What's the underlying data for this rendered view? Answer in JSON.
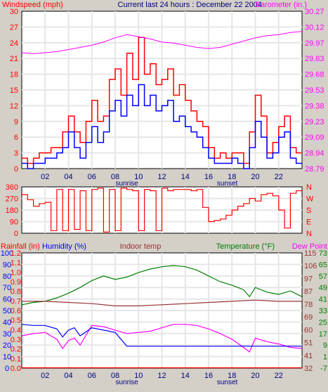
{
  "colors": {
    "background": "#d4d0c8",
    "plot_bg": "#ffffff",
    "grid": "#e6e6e6",
    "wind": "#ff0000",
    "gust": "#0000ff",
    "pressure": "#ff00ff",
    "direction": "#ff0000",
    "rain": "#ff0000",
    "humidity": "#0000ff",
    "indoor": "#993333",
    "temperature": "#008000",
    "dewpoint": "#ff00ff"
  },
  "chart_data": [
    {
      "type": "line",
      "title": "Current last 24 hours : December 22 2004",
      "left_axis_label": "Windspeed (mph)",
      "right_axis_label": "Barometer (in.)",
      "x_ticks": [
        "02",
        "04",
        "06",
        "08",
        "10",
        "12",
        "14",
        "16",
        "18",
        "20",
        "22"
      ],
      "markers": [
        "sunrise",
        "sunset"
      ],
      "marker_hours": [
        9,
        17.6
      ],
      "ylim": [
        0,
        30
      ],
      "y_ticks": [
        "0",
        "3",
        "6",
        "9",
        "12",
        "15",
        "18",
        "21",
        "24",
        "27",
        "30"
      ],
      "y2lim": [
        28.79,
        30.27
      ],
      "y2_ticks": [
        "28.79",
        "28.94",
        "29.09",
        "29.23",
        "29.38",
        "29.53",
        "29.68",
        "29.83",
        "29.97",
        "30.12",
        "30.27"
      ],
      "series": [
        {
          "key": "wind",
          "axis": "left",
          "x": [
            0,
            0.5,
            1,
            1.5,
            2,
            2.5,
            3,
            3.5,
            4,
            4.5,
            5,
            5.5,
            6,
            6.5,
            7,
            7.5,
            8,
            8.5,
            9,
            9.5,
            10,
            10.5,
            11,
            11.5,
            12,
            12.5,
            13,
            13.5,
            14,
            14.5,
            15,
            15.5,
            16,
            16.5,
            17,
            17.5,
            18,
            18.5,
            19,
            19.5,
            20,
            20.5,
            21,
            21.5,
            22,
            22.5,
            23,
            23.5
          ],
          "values": [
            2,
            1,
            2,
            3,
            3,
            4,
            4,
            7,
            10,
            7,
            5,
            9,
            13,
            9,
            10,
            17,
            19,
            14,
            22,
            17,
            25,
            18,
            20,
            16,
            17,
            19,
            14,
            16,
            13,
            11,
            9,
            8,
            4,
            2,
            3,
            2,
            3,
            3,
            1,
            7,
            14,
            10,
            3,
            5,
            8,
            10,
            4,
            3
          ]
        },
        {
          "key": "gust",
          "axis": "left",
          "x": [
            0,
            0.5,
            1,
            1.5,
            2,
            2.5,
            3,
            3.5,
            4,
            4.5,
            5,
            5.5,
            6,
            6.5,
            7,
            7.5,
            8,
            8.5,
            9,
            9.5,
            10,
            10.5,
            11,
            11.5,
            12,
            12.5,
            13,
            13.5,
            14,
            14.5,
            15,
            15.5,
            16,
            16.5,
            17,
            17.5,
            18,
            18.5,
            19,
            19.5,
            20,
            20.5,
            21,
            21.5,
            22,
            22.5,
            23,
            23.5
          ],
          "values": [
            1,
            0,
            1,
            1,
            2,
            2,
            3,
            4,
            7,
            4,
            2,
            5,
            8,
            5,
            7,
            11,
            13,
            10,
            14,
            12,
            16,
            12,
            14,
            11,
            12,
            13,
            9,
            10,
            8,
            7,
            6,
            4,
            2,
            1,
            1,
            1,
            2,
            1,
            0,
            4,
            9,
            6,
            2,
            3,
            6,
            7,
            2,
            1
          ]
        },
        {
          "key": "pressure",
          "axis": "right",
          "x": [
            0,
            1,
            2,
            3,
            4,
            5,
            6,
            7,
            8,
            9,
            10,
            11,
            12,
            13,
            14,
            15,
            16,
            17,
            18,
            19,
            20,
            21,
            22,
            23,
            24
          ],
          "values": [
            29.88,
            29.87,
            29.88,
            29.89,
            29.91,
            29.93,
            29.95,
            29.98,
            30.02,
            30.05,
            30.03,
            30.01,
            29.98,
            29.97,
            29.95,
            29.93,
            29.92,
            29.93,
            29.96,
            29.99,
            30.02,
            30.04,
            30.05,
            30.07,
            30.08
          ]
        }
      ]
    },
    {
      "type": "line",
      "title": "",
      "ylim": [
        0,
        360
      ],
      "y_ticks": [
        "0",
        "90",
        "180",
        "270",
        "360"
      ],
      "y2_ticks": [
        "N",
        "E",
        "S",
        "W",
        "N"
      ],
      "series": [
        {
          "key": "direction",
          "axis": "left",
          "x": [
            0,
            0.5,
            1,
            1.5,
            2,
            2.5,
            3,
            3.5,
            4,
            4.5,
            5,
            5.5,
            6,
            6.5,
            7,
            7.5,
            8,
            8.5,
            9,
            9.5,
            10,
            10.5,
            11,
            11.5,
            12,
            12.5,
            13,
            13.5,
            14,
            14.5,
            15,
            15.5,
            16,
            16.5,
            17,
            17.5,
            18,
            18.5,
            19,
            19.5,
            20,
            20.5,
            21,
            21.5,
            22,
            22.5,
            23,
            23.5
          ],
          "values": [
            300,
            260,
            210,
            230,
            240,
            20,
            340,
            20,
            340,
            30,
            330,
            20,
            340,
            350,
            10,
            340,
            20,
            350,
            340,
            330,
            20,
            340,
            330,
            20,
            350,
            330,
            340,
            340,
            340,
            330,
            340,
            200,
            90,
            100,
            110,
            140,
            180,
            210,
            230,
            270,
            250,
            300,
            310,
            290,
            180,
            40,
            310,
            330
          ]
        }
      ]
    },
    {
      "type": "line",
      "title": "",
      "labels": {
        "rain": "Rainfall (in)",
        "humidity": "Humidity (%)",
        "indoor": "Indoor temp",
        "temperature": "Temperature (°F)",
        "dewpoint": "Dew Point"
      },
      "ylim": [
        0,
        100
      ],
      "y_ticks_humidity": [
        "0",
        "10",
        "20",
        "30",
        "40",
        "50",
        "60",
        "70",
        "80",
        "90",
        "100"
      ],
      "y_ticks_rain": [
        "0.0",
        "0.1",
        "0.2",
        "0.3",
        "0.4",
        "0.5",
        "0.6",
        "0.7",
        "0.8",
        "0.9",
        "1.0",
        "1.1",
        "1.2"
      ],
      "y_ticks_indoor": [
        "32",
        "41",
        "51",
        "60",
        "69",
        "78",
        "87",
        "97",
        "106",
        "115"
      ],
      "y_ticks_temperature": [
        "-7",
        "1",
        "9",
        "17",
        "25",
        "33",
        "41",
        "49",
        "57",
        "65",
        "73"
      ],
      "series": [
        {
          "key": "temperature",
          "axis": "humidity",
          "x": [
            0,
            1,
            2,
            3,
            4,
            5,
            6,
            7,
            8,
            9,
            10,
            11,
            12,
            13,
            14,
            15,
            16,
            17,
            18,
            19,
            19.5,
            20,
            21,
            22,
            23,
            24
          ],
          "values": [
            55,
            57,
            58,
            61,
            65,
            70,
            76,
            80,
            77,
            79,
            83,
            86,
            88,
            89,
            88,
            85,
            80,
            75,
            72,
            68,
            62,
            70,
            66,
            64,
            67,
            62
          ]
        },
        {
          "key": "indoor",
          "axis": "humidity",
          "x": [
            0,
            2,
            4,
            6,
            8,
            10,
            12,
            14,
            16,
            18,
            20,
            22,
            24
          ],
          "values": [
            58,
            58,
            57,
            56,
            54,
            54,
            55,
            56,
            57,
            58,
            59,
            58,
            58
          ]
        },
        {
          "key": "dewpoint",
          "axis": "humidity",
          "x": [
            0,
            1,
            2,
            3,
            3.5,
            4,
            4.5,
            5,
            6,
            7,
            8,
            9,
            10,
            11,
            12,
            13,
            14,
            15,
            16,
            17,
            18,
            19,
            19.5,
            20,
            21,
            22,
            23,
            24
          ],
          "values": [
            28,
            30,
            31,
            25,
            17,
            24,
            26,
            20,
            37,
            36,
            33,
            30,
            31,
            32,
            35,
            38,
            38,
            37,
            34,
            30,
            25,
            18,
            14,
            26,
            23,
            21,
            18,
            17
          ]
        },
        {
          "key": "humidity",
          "axis": "humidity",
          "x": [
            0,
            1,
            2,
            3,
            3.5,
            4,
            4.5,
            5,
            6,
            7,
            8,
            9,
            10,
            12,
            14,
            16,
            18,
            20,
            22,
            24
          ],
          "values": [
            38,
            37,
            37,
            34,
            27,
            33,
            35,
            28,
            35,
            33,
            31,
            19,
            19,
            19,
            19,
            19,
            19,
            19,
            19,
            19
          ]
        },
        {
          "key": "rain",
          "axis": "humidity",
          "x": [
            0,
            24
          ],
          "values": [
            0.3,
            0.3
          ]
        }
      ]
    }
  ]
}
